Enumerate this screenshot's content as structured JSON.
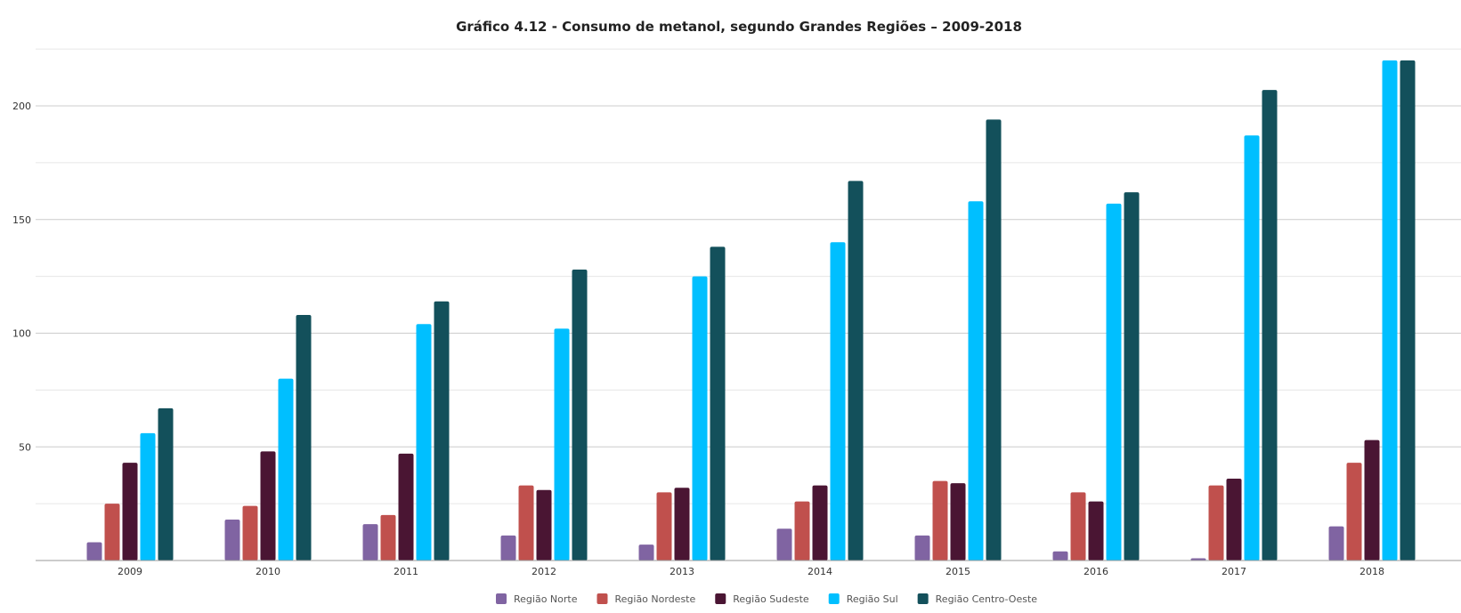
{
  "chart_data": {
    "type": "bar",
    "title": "Gráfico 4.12 - Consumo de metanol, segundo Grandes Regiões – 2009-2018",
    "categories": [
      "2009",
      "2010",
      "2011",
      "2012",
      "2013",
      "2014",
      "2015",
      "2016",
      "2017",
      "2018"
    ],
    "series": [
      {
        "name": "Região Norte",
        "color": "#8064a2",
        "values": [
          8,
          18,
          16,
          11,
          7,
          14,
          11,
          4,
          1,
          15
        ]
      },
      {
        "name": "Região Nordeste",
        "color": "#c0504d",
        "values": [
          25,
          24,
          20,
          33,
          30,
          26,
          35,
          30,
          33,
          43
        ]
      },
      {
        "name": "Região Sudeste",
        "color": "#4a1533",
        "values": [
          43,
          48,
          47,
          31,
          32,
          33,
          34,
          26,
          36,
          53
        ]
      },
      {
        "name": "Região Sul",
        "color": "#00bfff",
        "values": [
          56,
          80,
          104,
          102,
          125,
          140,
          158,
          157,
          187,
          220
        ]
      },
      {
        "name": "Região Centro-Oeste",
        "color": "#13505b",
        "values": [
          67,
          108,
          114,
          128,
          138,
          167,
          194,
          162,
          207,
          220
        ]
      }
    ],
    "y_ticks": [
      "50",
      "100",
      "150",
      "200"
    ],
    "ylim": [
      0,
      220
    ],
    "grid": true,
    "legend_position": "bottom"
  }
}
